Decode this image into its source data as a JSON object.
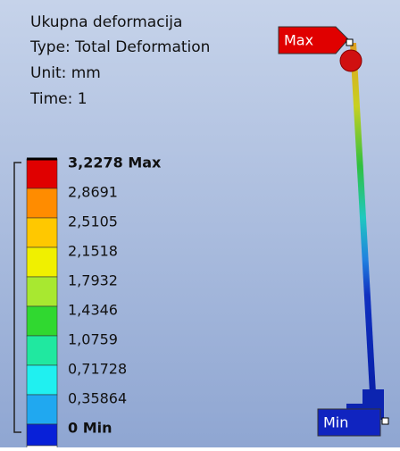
{
  "header": {
    "title": "Ukupna deformacija",
    "type": "Type: Total Deformation",
    "unit": "Unit: mm",
    "time": "Time: 1"
  },
  "legend": {
    "labels": [
      "3,2278 Max",
      "2,8691",
      "2,5105",
      "2,1518",
      "1,7932",
      "1,4346",
      "1,0759",
      "0,71728",
      "0,35864",
      "0 Min"
    ]
  },
  "tags": {
    "max": "Max",
    "min": "Min"
  }
}
